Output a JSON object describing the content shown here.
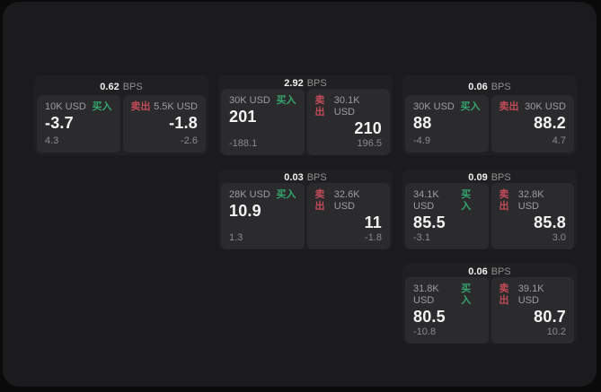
{
  "labels": {
    "bps_unit": "BPS",
    "buy": "买入",
    "sell": "卖出"
  },
  "colors": {
    "page_bg": "#0a0a0b",
    "panel_bg": "#1b1b1d",
    "card_bg": "#202022",
    "subcard_bg": "#2b2b2d",
    "buy_green": "#35a56d",
    "sell_red": "#c24b58",
    "text_white": "#f3f3f4",
    "text_gray": "#9d9da0"
  },
  "cards": [
    {
      "bps": "0.62",
      "buy": {
        "amount": "10K USD",
        "value": "-3.7",
        "delta": "4.3"
      },
      "sell": {
        "amount": "5.5K USD",
        "value": "-1.8",
        "delta": "-2.6"
      }
    },
    {
      "bps": "2.92",
      "buy": {
        "amount": "30K USD",
        "value": "201",
        "delta": "-188.1"
      },
      "sell": {
        "amount": "30.1K USD",
        "value": "210",
        "delta": "196.5"
      }
    },
    {
      "bps": "0.06",
      "buy": {
        "amount": "30K USD",
        "value": "88",
        "delta": "-4.9"
      },
      "sell": {
        "amount": "30K USD",
        "value": "88.2",
        "delta": "4.7"
      }
    },
    {
      "bps": "0.03",
      "buy": {
        "amount": "28K USD",
        "value": "10.9",
        "delta": "1.3"
      },
      "sell": {
        "amount": "32.6K USD",
        "value": "11",
        "delta": "-1.8"
      }
    },
    {
      "bps": "0.09",
      "buy": {
        "amount": "34.1K USD",
        "value": "85.5",
        "delta": "-3.1"
      },
      "sell": {
        "amount": "32.8K USD",
        "value": "85.8",
        "delta": "3.0"
      }
    },
    {
      "bps": "0.06",
      "buy": {
        "amount": "31.8K USD",
        "value": "80.5",
        "delta": "-10.8"
      },
      "sell": {
        "amount": "39.1K USD",
        "value": "80.7",
        "delta": "10.2"
      }
    }
  ]
}
